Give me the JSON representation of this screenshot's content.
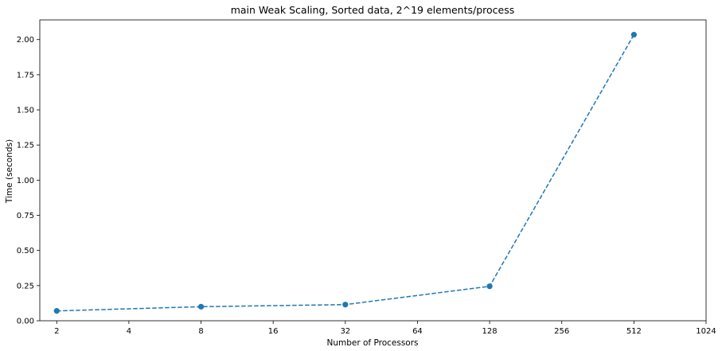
{
  "chart_data": {
    "type": "line",
    "title": "main Weak Scaling, Sorted data, 2^19 elements/process",
    "xlabel": "Number of Processors",
    "ylabel": "Time (seconds)",
    "x_scale": "log2",
    "xlim": [
      1.7,
      1024
    ],
    "ylim": [
      0,
      2.14
    ],
    "x_ticks": [
      2,
      4,
      8,
      16,
      32,
      64,
      128,
      256,
      512,
      1024
    ],
    "x_tick_labels": [
      "2",
      "4",
      "8",
      "16",
      "32",
      "64",
      "128",
      "256",
      "512",
      "1024"
    ],
    "y_ticks": [
      0,
      0.25,
      0.5,
      0.75,
      1.0,
      1.25,
      1.5,
      1.75,
      2.0
    ],
    "y_tick_labels": [
      "0.00",
      "0.25",
      "0.50",
      "0.75",
      "1.00",
      "1.25",
      "1.50",
      "1.75",
      "2.00"
    ],
    "grid": false,
    "series": [
      {
        "color": "#1f77b4",
        "line_style": "dashed",
        "marker": "circle",
        "x": [
          2,
          8,
          32,
          128,
          512
        ],
        "y": [
          0.07,
          0.1,
          0.115,
          0.245,
          2.035
        ]
      }
    ]
  }
}
